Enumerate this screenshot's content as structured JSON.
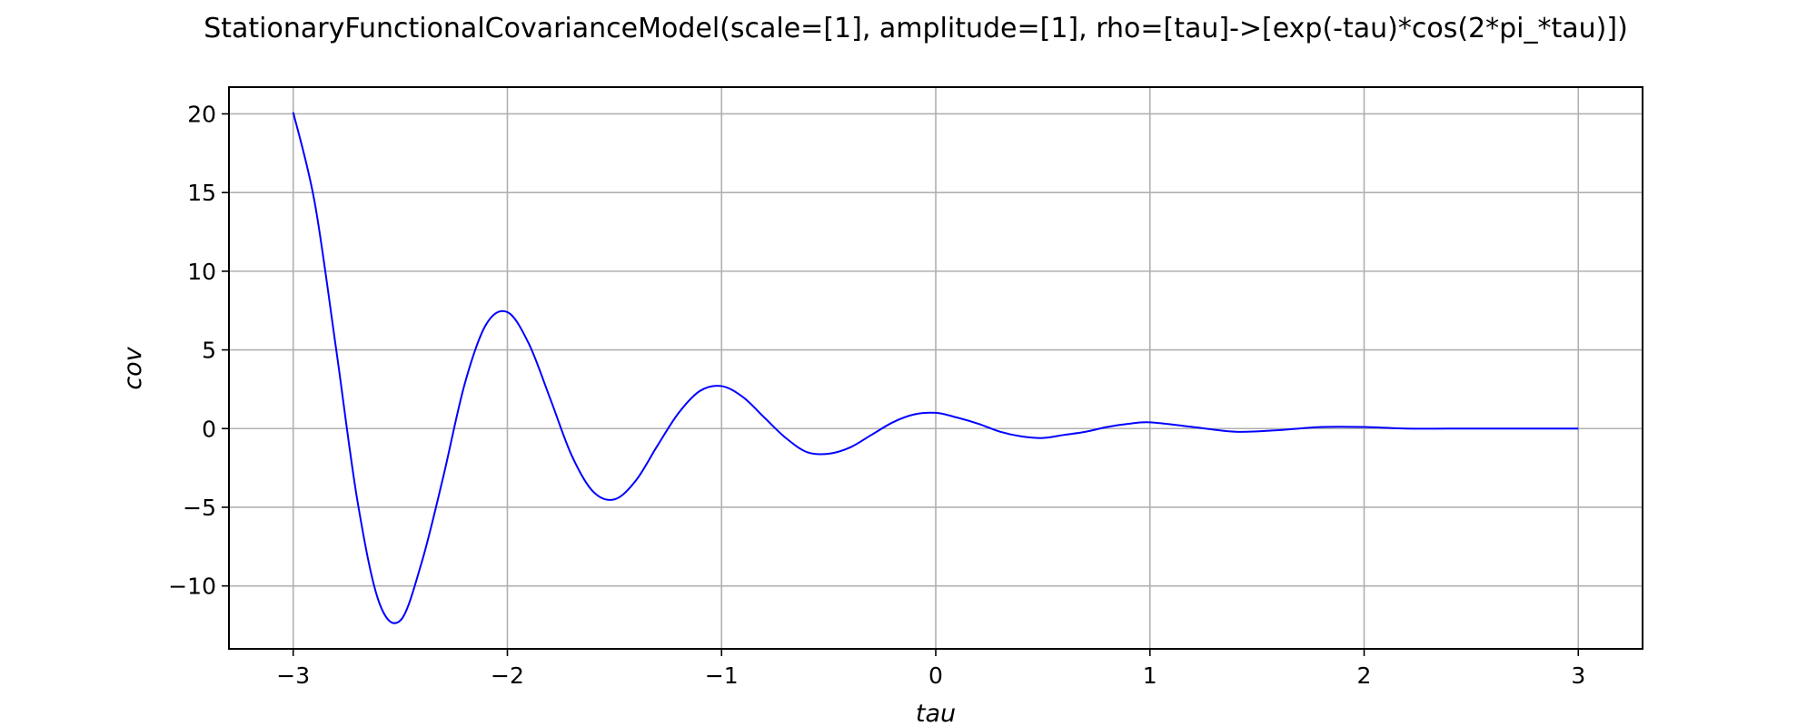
{
  "chart_data": {
    "type": "line",
    "title": "StationaryFunctionalCovarianceModel(scale=[1], amplitude=[1], rho=[tau]->[exp(-tau)*cos(2*pi_*tau)])",
    "xlabel": "tau",
    "ylabel": "cov",
    "xlim": [
      -3.3,
      3.3
    ],
    "ylim": [
      -14.0,
      21.7
    ],
    "grid": true,
    "legend": "none",
    "x_ticks": [
      -3,
      -2,
      -1,
      0,
      1,
      2,
      3
    ],
    "x_tick_labels": [
      "−3",
      "−2",
      "−1",
      "0",
      "1",
      "2",
      "3"
    ],
    "y_ticks": [
      -10,
      -5,
      0,
      5,
      10,
      15,
      20
    ],
    "y_tick_labels": [
      "−10",
      "−5",
      "0",
      "5",
      "10",
      "15",
      "20"
    ],
    "series": [
      {
        "color": "#0000ff",
        "x": [
          -3.0,
          -2.9,
          -2.8,
          -2.7,
          -2.6,
          -2.5,
          -2.4,
          -2.3,
          -2.2,
          -2.1,
          -2.0,
          -1.9,
          -1.8,
          -1.7,
          -1.6,
          -1.5,
          -1.4,
          -1.3,
          -1.2,
          -1.1,
          -1.0,
          -0.9,
          -0.8,
          -0.7,
          -0.6,
          -0.5,
          -0.4,
          -0.3,
          -0.2,
          -0.1,
          0.0,
          0.1,
          0.2,
          0.3,
          0.4,
          0.5,
          0.6,
          0.7,
          0.8,
          0.9,
          1.0,
          1.2,
          1.4,
          1.6,
          1.8,
          2.0,
          2.2,
          2.4,
          2.6,
          2.8,
          3.0
        ],
        "y": [
          20.1,
          14.4,
          5.1,
          -4.6,
          -11.0,
          -12.2,
          -8.5,
          -3.1,
          2.8,
          6.6,
          7.4,
          5.4,
          1.9,
          -1.7,
          -4.0,
          -4.5,
          -3.3,
          -1.1,
          1.0,
          2.4,
          2.7,
          2.0,
          0.7,
          -0.6,
          -1.5,
          -1.6,
          -1.2,
          -0.4,
          0.4,
          0.9,
          1.0,
          0.7,
          0.3,
          -0.2,
          -0.5,
          -0.6,
          -0.4,
          -0.2,
          0.1,
          0.3,
          0.4,
          0.1,
          -0.2,
          -0.1,
          0.1,
          0.1,
          0.0,
          0.0,
          0.0,
          0.0,
          0.0
        ]
      }
    ]
  }
}
